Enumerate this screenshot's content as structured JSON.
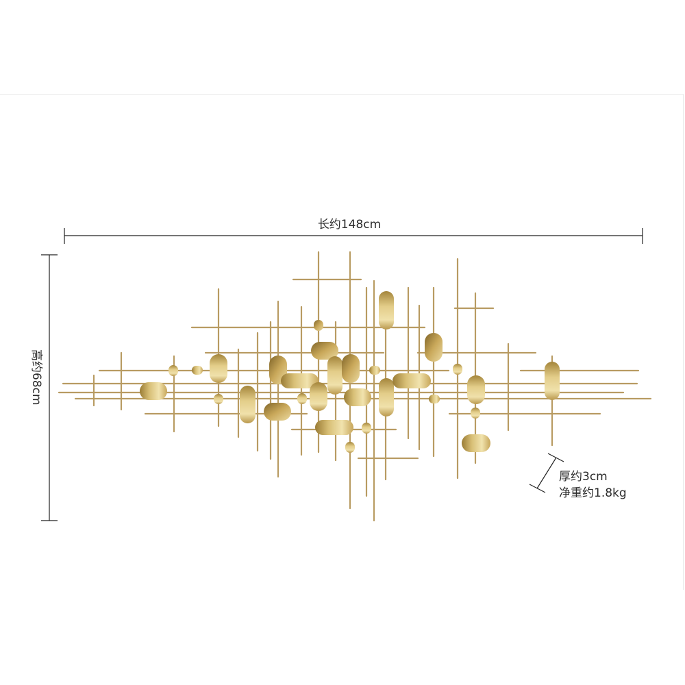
{
  "dimensions": {
    "length_label": "长约148cm",
    "height_label": "高约68cm",
    "thickness_label": "厚约3cm",
    "weight_label": "净重约1.8kg"
  },
  "colors": {
    "gold_light": "#e9d79a",
    "gold_mid": "#c9a85a",
    "gold_dark": "#8f7431",
    "rod": "#b89b62",
    "dimension_line": "#222222"
  },
  "product": {
    "name": "metal-gold-grid-wall-art"
  }
}
